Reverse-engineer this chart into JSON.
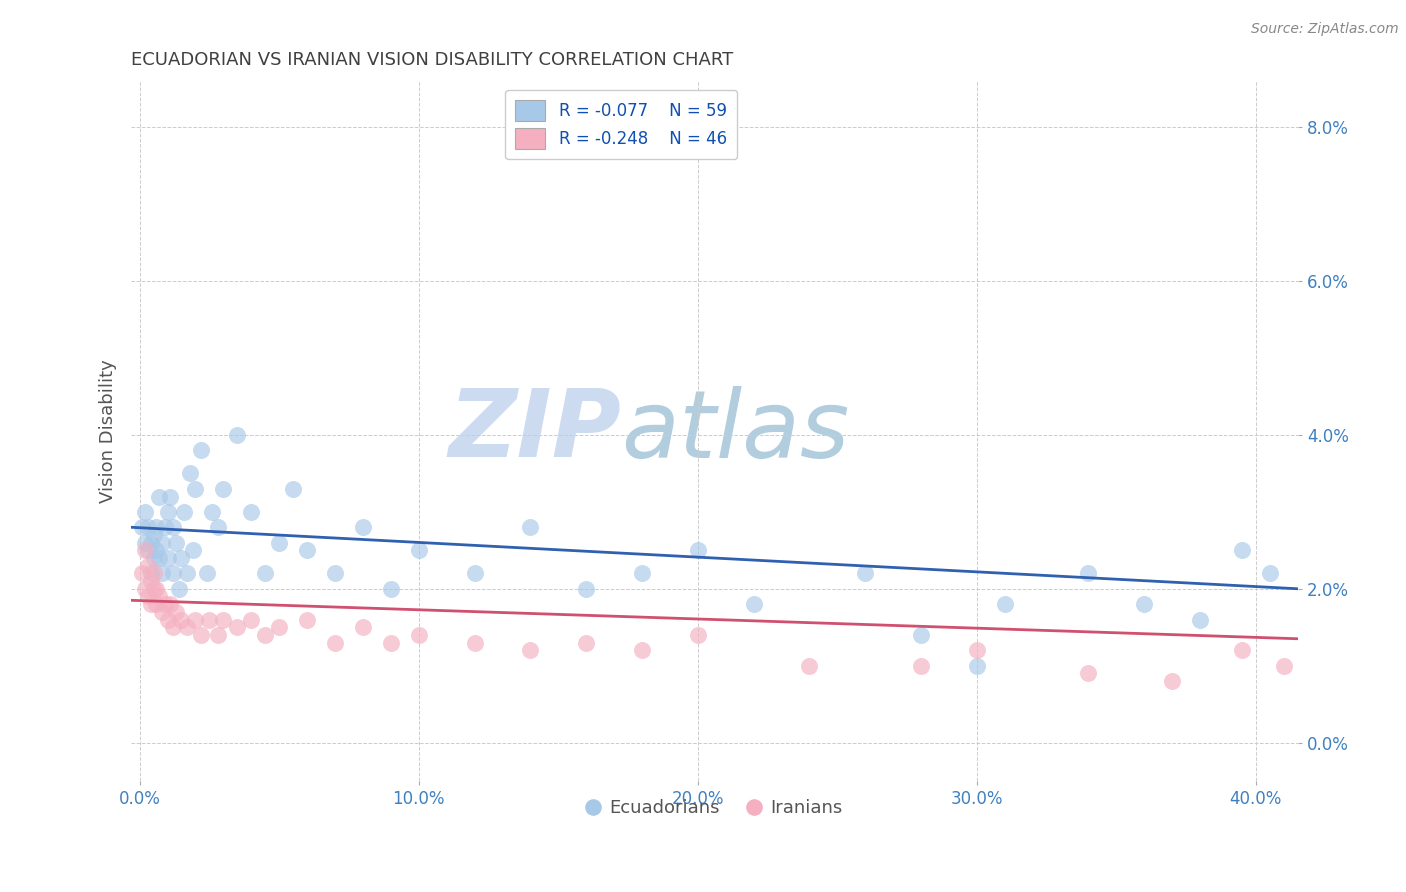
{
  "title": "ECUADORIAN VS IRANIAN VISION DISABILITY CORRELATION CHART",
  "source": "Source: ZipAtlas.com",
  "xlabel_tick_vals": [
    0.0,
    0.1,
    0.2,
    0.3,
    0.4
  ],
  "ylabel_tick_vals": [
    0.0,
    0.02,
    0.04,
    0.06,
    0.08
  ],
  "xlim": [
    -0.003,
    0.415
  ],
  "ylim": [
    -0.005,
    0.086
  ],
  "ylabel": "Vision Disability",
  "ecuadorians_x": [
    0.001,
    0.002,
    0.002,
    0.003,
    0.003,
    0.004,
    0.004,
    0.005,
    0.005,
    0.006,
    0.006,
    0.007,
    0.007,
    0.008,
    0.008,
    0.009,
    0.01,
    0.01,
    0.011,
    0.012,
    0.012,
    0.013,
    0.014,
    0.015,
    0.016,
    0.017,
    0.018,
    0.019,
    0.02,
    0.022,
    0.024,
    0.026,
    0.028,
    0.03,
    0.035,
    0.04,
    0.045,
    0.05,
    0.055,
    0.06,
    0.07,
    0.08,
    0.09,
    0.1,
    0.12,
    0.14,
    0.16,
    0.18,
    0.2,
    0.22,
    0.26,
    0.28,
    0.3,
    0.31,
    0.34,
    0.36,
    0.38,
    0.395,
    0.405
  ],
  "ecuadorians_y": [
    0.028,
    0.026,
    0.03,
    0.025,
    0.028,
    0.022,
    0.026,
    0.024,
    0.027,
    0.025,
    0.028,
    0.024,
    0.032,
    0.022,
    0.026,
    0.028,
    0.03,
    0.024,
    0.032,
    0.028,
    0.022,
    0.026,
    0.02,
    0.024,
    0.03,
    0.022,
    0.035,
    0.025,
    0.033,
    0.038,
    0.022,
    0.03,
    0.028,
    0.033,
    0.04,
    0.03,
    0.022,
    0.026,
    0.033,
    0.025,
    0.022,
    0.028,
    0.02,
    0.025,
    0.022,
    0.028,
    0.02,
    0.022,
    0.025,
    0.018,
    0.022,
    0.014,
    0.01,
    0.018,
    0.022,
    0.018,
    0.016,
    0.025,
    0.022
  ],
  "iranians_x": [
    0.001,
    0.002,
    0.002,
    0.003,
    0.003,
    0.004,
    0.004,
    0.005,
    0.005,
    0.006,
    0.006,
    0.007,
    0.008,
    0.009,
    0.01,
    0.011,
    0.012,
    0.013,
    0.015,
    0.017,
    0.02,
    0.022,
    0.025,
    0.028,
    0.03,
    0.035,
    0.04,
    0.045,
    0.05,
    0.06,
    0.07,
    0.08,
    0.09,
    0.1,
    0.12,
    0.14,
    0.16,
    0.18,
    0.2,
    0.24,
    0.28,
    0.3,
    0.34,
    0.37,
    0.395,
    0.41
  ],
  "iranians_y": [
    0.022,
    0.02,
    0.025,
    0.019,
    0.023,
    0.018,
    0.021,
    0.02,
    0.022,
    0.018,
    0.02,
    0.019,
    0.017,
    0.018,
    0.016,
    0.018,
    0.015,
    0.017,
    0.016,
    0.015,
    0.016,
    0.014,
    0.016,
    0.014,
    0.016,
    0.015,
    0.016,
    0.014,
    0.015,
    0.016,
    0.013,
    0.015,
    0.013,
    0.014,
    0.013,
    0.012,
    0.013,
    0.012,
    0.014,
    0.01,
    0.01,
    0.012,
    0.009,
    0.008,
    0.012,
    0.01
  ],
  "ecu_color": "#a8c8e8",
  "iran_color": "#f4b0c0",
  "ecu_line_color": "#3060b0",
  "iran_line_color": "#d05070",
  "ecu_R": -0.077,
  "ecu_N": 59,
  "iran_R": -0.248,
  "iran_N": 46,
  "legend_R_color": "#1050b0",
  "background_color": "#ffffff",
  "grid_color": "#cccccc",
  "title_color": "#404040",
  "axis_label_color": "#4080c0",
  "watermark_zip": "ZIP",
  "watermark_atlas": "atlas",
  "watermark_color_zip": "#c8d8f0",
  "watermark_color_atlas": "#90b8d0"
}
